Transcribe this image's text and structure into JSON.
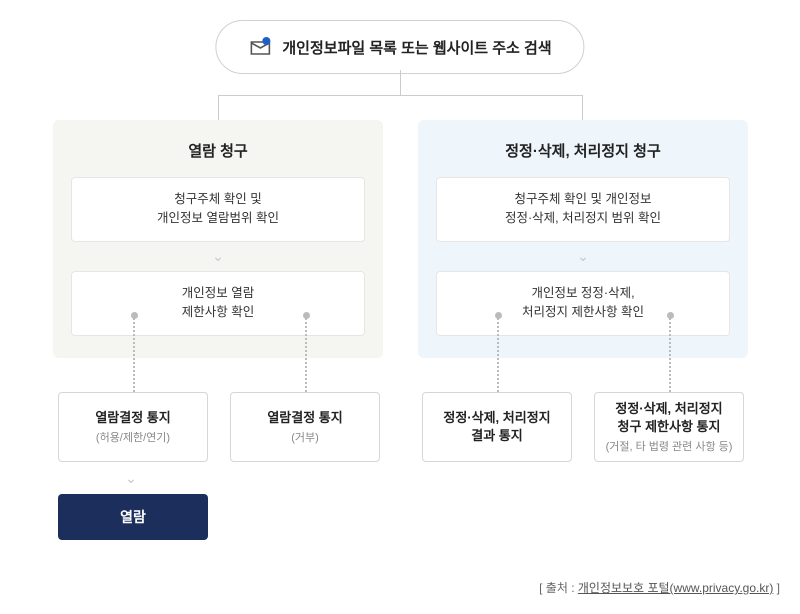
{
  "root": {
    "label": "개인정보파일 목록 또는 웹사이트 주소 검색",
    "icon_name": "mail-search-icon",
    "icon_accent": "#1b5fc9"
  },
  "branches": {
    "left": {
      "title": "열람 청구",
      "bg": "#f5f6f1",
      "steps": [
        "청구주체 확인 및\n개인정보 열람범위 확인",
        "개인정보 열람\n제한사항 확인"
      ]
    },
    "right": {
      "title": "정정·삭제, 처리정지 청구",
      "bg": "#eef5fb",
      "steps": [
        "청구주체 확인 및 개인정보\n정정·삭제, 처리정지 범위 확인",
        "개인정보 정정·삭제,\n처리정지 제한사항 확인"
      ]
    }
  },
  "results": [
    {
      "title": "열람결정 통지",
      "sub": "(허용/제한/연기)"
    },
    {
      "title": "열람결정 통지",
      "sub": "(거부)"
    },
    {
      "title": "정정·삭제, 처리정지\n결과 통지",
      "sub": ""
    },
    {
      "title": "정정·삭제, 처리정지\n청구 제한사항 통지",
      "sub": "(거절, 타 법령 관련 사항 등)"
    }
  ],
  "final": {
    "label": "열람",
    "bg": "#1b2e5c"
  },
  "source": {
    "prefix": "[ 출처 : ",
    "link_text": "개인정보보호 포털(www.privacy.go.kr)",
    "suffix": " ]"
  },
  "connectors": {
    "line_color": "#cccccc",
    "dotted_color": "#bbbbbb"
  },
  "type": "flowchart"
}
